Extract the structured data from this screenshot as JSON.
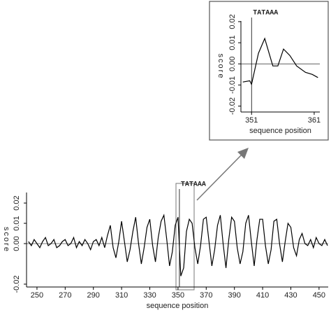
{
  "chart_data": [
    {
      "type": "line",
      "x_label": "sequence position",
      "y_label": "score",
      "x": [
        244,
        246,
        248,
        250,
        252,
        254,
        256,
        258,
        260,
        262,
        264,
        266,
        268,
        270,
        272,
        274,
        276,
        278,
        280,
        282,
        284,
        286,
        288,
        290,
        292,
        294,
        296,
        298,
        300,
        302,
        304,
        306,
        308,
        310,
        312,
        314,
        316,
        318,
        320,
        322,
        324,
        326,
        328,
        330,
        332,
        334,
        336,
        338,
        340,
        342,
        344,
        346,
        348,
        350,
        352,
        354,
        356,
        358,
        360,
        362,
        364,
        366,
        368,
        370,
        372,
        374,
        376,
        378,
        380,
        382,
        384,
        386,
        388,
        390,
        392,
        394,
        396,
        398,
        400,
        402,
        404,
        406,
        408,
        410,
        412,
        414,
        416,
        418,
        420,
        422,
        424,
        426,
        428,
        430,
        432,
        434,
        436,
        438,
        440,
        442,
        444,
        446,
        448,
        450,
        452,
        454,
        456
      ],
      "series": [
        {
          "color": "#000000",
          "values": [
            0.001,
            -0.001,
            0.002,
            0.0,
            -0.002,
            0.001,
            0.003,
            -0.001,
            0.0,
            0.002,
            -0.002,
            -0.001,
            0.001,
            0.002,
            -0.001,
            0.0,
            0.003,
            -0.002,
            0.001,
            -0.001,
            0.002,
            0.0,
            -0.003,
            0.001,
            0.002,
            -0.001,
            0.003,
            -0.002,
            0.004,
            0.009,
            -0.002,
            -0.007,
            0.001,
            0.011,
            0.001,
            -0.009,
            -0.003,
            0.006,
            0.013,
            0.0,
            -0.01,
            -0.002,
            0.008,
            0.012,
            -0.001,
            -0.009,
            0.003,
            0.011,
            0.014,
            0.002,
            -0.011,
            -0.004,
            0.009,
            0.013,
            -0.016,
            -0.012,
            0.006,
            0.012,
            0.01,
            -0.002,
            -0.01,
            -0.001,
            0.012,
            0.013,
            0.001,
            -0.011,
            -0.003,
            0.009,
            0.014,
            0.0,
            -0.012,
            0.002,
            0.013,
            0.011,
            -0.002,
            -0.01,
            -0.004,
            0.01,
            0.014,
            0.001,
            -0.011,
            0.002,
            0.012,
            0.012,
            -0.001,
            -0.01,
            -0.003,
            0.011,
            0.012,
            0.0,
            -0.009,
            0.001,
            0.01,
            0.008,
            -0.002,
            -0.006,
            0.002,
            0.005,
            0.0,
            -0.001,
            0.002,
            -0.002,
            0.003,
            0.0,
            -0.001,
            0.002,
            -0.001
          ]
        }
      ],
      "xlim": [
        242.6,
        456.5
      ],
      "xticks": [
        250,
        270,
        290,
        310,
        330,
        350,
        370,
        390,
        410,
        430,
        450
      ],
      "ylim": [
        -0.0214,
        0.0252
      ],
      "yticks": [
        -0.02,
        {
          "value": 0,
          "label": "0.00"
        },
        0.01,
        0.02
      ],
      "annotation": {
        "text": "TATAAA",
        "x": 351
      }
    },
    {
      "type": "line",
      "x_label": "sequence position",
      "y_label": "score",
      "x": [
        349.6,
        350.7,
        351,
        352.1,
        353.1,
        354.4,
        355.2,
        356.1,
        357.1,
        358.2,
        359.6,
        360.7,
        361.6
      ],
      "series": [
        {
          "color": "#000000",
          "values": [
            -0.0086,
            -0.008,
            -0.0097,
            0.005,
            0.012,
            -0.001,
            -0.001,
            0.007,
            0.004,
            -0.001,
            -0.004,
            -0.005,
            -0.0065
          ]
        }
      ],
      "xlim": [
        349.3,
        361.9
      ],
      "xticks": [
        351,
        361
      ],
      "ylim": [
        -0.0228,
        0.0203
      ],
      "yticks": [
        -0.02,
        -0.01,
        {
          "value": 0,
          "label": "0.00"
        },
        0.01,
        0.02
      ],
      "annotation": {
        "text": "TATAAA",
        "x": 351
      }
    }
  ]
}
